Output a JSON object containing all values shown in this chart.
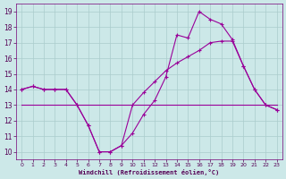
{
  "xlabel": "Windchill (Refroidissement éolien,°C)",
  "background_color": "#cce8e8",
  "grid_color": "#aacccc",
  "line_color": "#990099",
  "ylim": [
    9.5,
    19.5
  ],
  "xlim": [
    -0.5,
    23.5
  ],
  "yticks": [
    10,
    11,
    12,
    13,
    14,
    15,
    16,
    17,
    18,
    19
  ],
  "xticks": [
    0,
    1,
    2,
    3,
    4,
    5,
    6,
    7,
    8,
    9,
    10,
    11,
    12,
    13,
    14,
    15,
    16,
    17,
    18,
    19,
    20,
    21,
    22,
    23
  ],
  "line1_x": [
    0,
    1,
    2,
    3,
    4,
    5,
    6,
    7,
    8,
    9,
    10,
    11,
    12,
    13,
    14,
    15,
    16,
    17,
    18,
    19,
    20,
    21,
    22,
    23
  ],
  "line1_y": [
    14.0,
    14.2,
    14.0,
    14.0,
    14.0,
    13.0,
    11.7,
    10.0,
    10.0,
    10.4,
    11.2,
    12.4,
    13.3,
    14.8,
    17.5,
    17.3,
    19.0,
    18.5,
    18.2,
    17.2,
    15.5,
    14.0,
    13.0,
    12.7
  ],
  "line2_x": [
    0,
    1,
    2,
    3,
    4,
    5,
    6,
    7,
    8,
    9,
    10,
    11,
    12,
    13,
    14,
    15,
    16,
    17,
    18,
    19,
    20,
    21,
    22,
    23
  ],
  "line2_y": [
    14.0,
    14.2,
    14.0,
    14.0,
    14.0,
    13.0,
    11.7,
    10.0,
    10.0,
    10.4,
    13.0,
    13.8,
    14.5,
    15.2,
    15.7,
    16.1,
    16.5,
    17.0,
    17.1,
    17.1,
    15.5,
    14.0,
    13.0,
    12.7
  ],
  "line3_x": [
    0,
    23
  ],
  "line3_y": [
    13.0,
    13.0
  ],
  "xtick_labels": [
    "0",
    "1",
    "2",
    "3",
    "4",
    "5",
    "6",
    "7",
    "8",
    "9",
    "10",
    "11",
    "12",
    "13",
    "14",
    "15",
    "16",
    "17",
    "18",
    "19",
    "20",
    "21",
    "22",
    "23"
  ]
}
